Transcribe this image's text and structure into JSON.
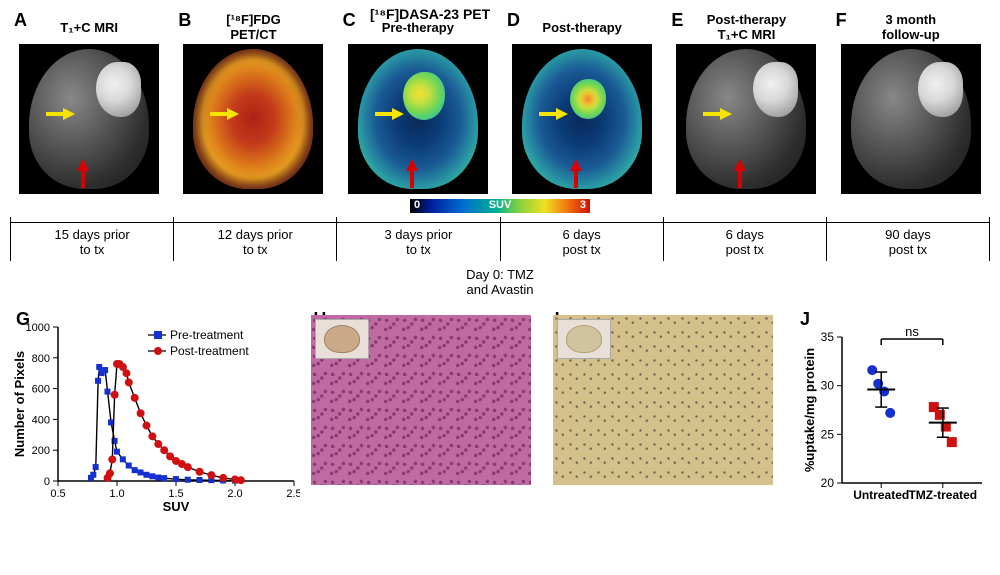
{
  "figure": {
    "toprow_group_title": "[¹⁸F]DASA-23 PET",
    "panels": [
      {
        "letter": "A",
        "title": "T₁+C MRI",
        "type": "mri",
        "lesion": true,
        "arrows": [
          "yellow",
          "red"
        ]
      },
      {
        "letter": "B",
        "title": "[¹⁸F]FDG\nPET/CT",
        "type": "fdg",
        "lesion": false,
        "arrows": [
          "yellow"
        ]
      },
      {
        "letter": "C",
        "title": "Pre-therapy",
        "type": "dasa",
        "hotspot": "pre",
        "arrows": [
          "yellow",
          "red"
        ]
      },
      {
        "letter": "D",
        "title": "Post-therapy",
        "type": "dasa",
        "hotspot": "post",
        "arrows": [
          "yellow",
          "red"
        ]
      },
      {
        "letter": "E",
        "title": "Post-therapy\nT₁+C MRI",
        "type": "mri",
        "lesion": true,
        "arrows": [
          "yellow",
          "red"
        ]
      },
      {
        "letter": "F",
        "title": "3 month\nfollow-up",
        "type": "mri",
        "lesion": true,
        "arrows": []
      }
    ],
    "timeline": [
      "15 days prior\nto tx",
      "12 days prior\nto tx",
      "3 days prior\nto tx",
      "6 days\npost tx",
      "6 days\npost tx",
      "90 days\npost tx"
    ],
    "day0": "Day 0: TMZ\nand Avastin",
    "suv_bar": {
      "min": "0",
      "max": "3",
      "label": "SUV",
      "gradient": [
        "#000",
        "#0020a0",
        "#0070d0",
        "#00b090",
        "#80d040",
        "#f0e020",
        "#f07010",
        "#d01000"
      ]
    }
  },
  "chartG": {
    "letter": "G",
    "type": "line-scatter",
    "title": "",
    "xlabel": "SUV",
    "ylabel": "Number of Pixels",
    "xlim": [
      0.5,
      2.5
    ],
    "ylim": [
      0,
      1000
    ],
    "xticks": [
      0.5,
      1.0,
      1.5,
      2.0,
      2.5
    ],
    "yticks": [
      0,
      200,
      400,
      600,
      800,
      1000
    ],
    "legend": [
      {
        "name": "Pre-treatment",
        "color": "#1530d0",
        "marker": "square"
      },
      {
        "name": "Post-treatment",
        "color": "#d01010",
        "marker": "circle"
      }
    ],
    "series": {
      "pre": {
        "color": "#1530d0",
        "marker": "square",
        "points": [
          [
            0.78,
            20
          ],
          [
            0.8,
            40
          ],
          [
            0.82,
            90
          ],
          [
            0.84,
            650
          ],
          [
            0.85,
            740
          ],
          [
            0.87,
            700
          ],
          [
            0.9,
            720
          ],
          [
            0.92,
            580
          ],
          [
            0.95,
            380
          ],
          [
            0.98,
            260
          ],
          [
            1.0,
            190
          ],
          [
            1.05,
            140
          ],
          [
            1.1,
            100
          ],
          [
            1.15,
            70
          ],
          [
            1.2,
            55
          ],
          [
            1.25,
            40
          ],
          [
            1.3,
            30
          ],
          [
            1.35,
            22
          ],
          [
            1.4,
            18
          ],
          [
            1.5,
            12
          ],
          [
            1.6,
            8
          ],
          [
            1.7,
            6
          ],
          [
            1.8,
            5
          ],
          [
            1.9,
            3
          ],
          [
            2.0,
            2
          ]
        ]
      },
      "post": {
        "color": "#d01010",
        "marker": "circle",
        "points": [
          [
            0.92,
            20
          ],
          [
            0.94,
            50
          ],
          [
            0.96,
            140
          ],
          [
            0.98,
            560
          ],
          [
            1.0,
            760
          ],
          [
            1.02,
            760
          ],
          [
            1.05,
            740
          ],
          [
            1.08,
            700
          ],
          [
            1.1,
            640
          ],
          [
            1.15,
            540
          ],
          [
            1.2,
            440
          ],
          [
            1.25,
            360
          ],
          [
            1.3,
            290
          ],
          [
            1.35,
            240
          ],
          [
            1.4,
            200
          ],
          [
            1.45,
            160
          ],
          [
            1.5,
            130
          ],
          [
            1.55,
            110
          ],
          [
            1.6,
            90
          ],
          [
            1.7,
            60
          ],
          [
            1.8,
            38
          ],
          [
            1.9,
            20
          ],
          [
            2.0,
            10
          ],
          [
            2.05,
            5
          ]
        ]
      }
    },
    "label_fontsize": 13,
    "tick_fontsize": 11,
    "legend_fontsize": 12,
    "line_width": 1.4,
    "marker_size": 4
  },
  "panelH": {
    "letter": "H",
    "type": "histology-HE",
    "inset": true
  },
  "panelI": {
    "letter": "I",
    "type": "histology-IHC",
    "inset": true
  },
  "chartJ": {
    "letter": "J",
    "type": "scatter-mean-sd",
    "xlabel": "",
    "ylabel": "%uptake/mg protein",
    "categories": [
      "Untreated",
      "TMZ-treated"
    ],
    "ylim": [
      20,
      35
    ],
    "yticks": [
      20,
      25,
      30,
      35
    ],
    "data": {
      "Untreated": {
        "color": "#1530d0",
        "marker": "circle",
        "values": [
          31.6,
          30.2,
          29.4,
          27.2
        ],
        "mean": 29.6,
        "sd": 1.8
      },
      "TMZ-treated": {
        "color": "#d01010",
        "marker": "square",
        "values": [
          27.8,
          27.0,
          25.8,
          24.2
        ],
        "mean": 26.2,
        "sd": 1.5
      }
    },
    "annotation": "ns",
    "label_fontsize": 13,
    "tick_fontsize": 12,
    "marker_size": 5
  },
  "colors": {
    "yellow_arrow": "#f5e500",
    "red_arrow": "#d80000",
    "black": "#000"
  }
}
